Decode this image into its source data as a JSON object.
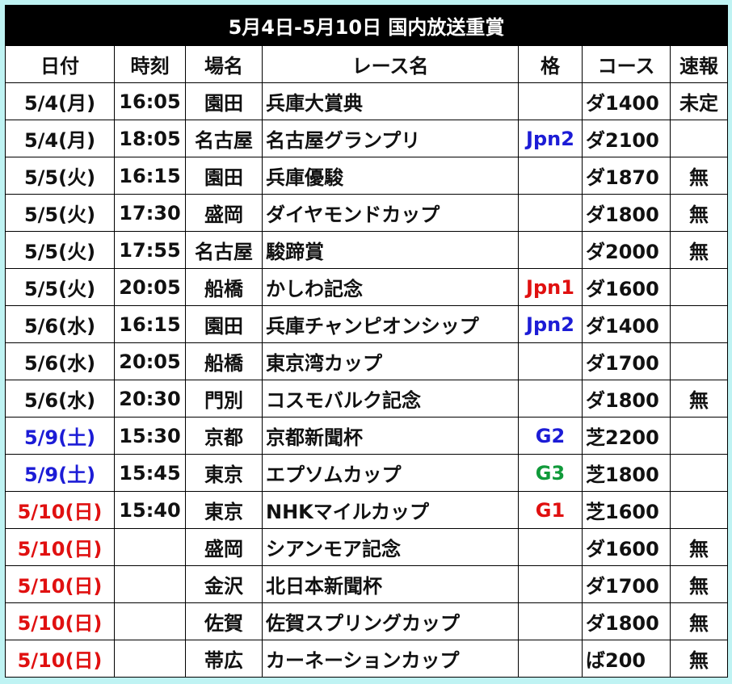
{
  "title": "5月4日-5月10日 国内放送重賞",
  "table": {
    "header": [
      "日付",
      "時刻",
      "場名",
      "レース名",
      "格",
      "コース",
      "速報"
    ],
    "rows": [
      {
        "cells": [
          "5/4(月)",
          "16:05",
          "園田",
          "兵庫大賞典",
          null,
          "ダ1400",
          "未定"
        ]
      },
      {
        "cells": [
          "5/4(月)",
          "18:05",
          "名古屋",
          "名古屋グランプリ",
          "Jpn2",
          "ダ2100",
          null
        ],
        "grade_color": "#1c1cd6"
      },
      {
        "cells": [
          "5/5(火)",
          "16:15",
          "園田",
          "兵庫優駿",
          null,
          "ダ1870",
          "無"
        ]
      },
      {
        "cells": [
          "5/5(火)",
          "17:30",
          "盛岡",
          "ダイヤモンドカップ",
          null,
          "ダ1800",
          "無"
        ]
      },
      {
        "cells": [
          "5/5(火)",
          "17:55",
          "名古屋",
          "駿蹄賞",
          null,
          "ダ2000",
          "無"
        ]
      },
      {
        "cells": [
          "5/5(火)",
          "20:05",
          "船橋",
          "かしわ記念",
          "Jpn1",
          "ダ1600",
          null
        ],
        "grade_color": "#e01010"
      },
      {
        "cells": [
          "5/6(水)",
          "16:15",
          "園田",
          "兵庫チャンピオンシップ",
          "Jpn2",
          "ダ1400",
          null
        ],
        "grade_color": "#1c1cd6"
      },
      {
        "cells": [
          "5/6(水)",
          "20:05",
          "船橋",
          "東京湾カップ",
          null,
          "ダ1700",
          null
        ]
      },
      {
        "cells": [
          "5/6(水)",
          "20:30",
          "門別",
          "コスモバルク記念",
          null,
          "ダ1800",
          "無"
        ]
      },
      {
        "cells": [
          "5/9(土)",
          "15:30",
          "京都",
          "京都新聞杯",
          "G2",
          "芝2200",
          null
        ],
        "date_color": "#1c1cd6",
        "grade_color": "#1c1cd6"
      },
      {
        "cells": [
          "5/9(土)",
          "15:45",
          "東京",
          "エプソムカップ",
          "G3",
          "芝1800",
          null
        ],
        "date_color": "#1c1cd6",
        "grade_color": "#109a3a"
      },
      {
        "cells": [
          "5/10(日)",
          "15:40",
          "東京",
          "NHKマイルカップ",
          "G1",
          "芝1600",
          null
        ],
        "date_color": "#e01010",
        "grade_color": "#e01010"
      },
      {
        "cells": [
          "5/10(日)",
          null,
          "盛岡",
          "シアンモア記念",
          null,
          "ダ1600",
          "無"
        ],
        "date_color": "#e01010"
      },
      {
        "cells": [
          "5/10(日)",
          null,
          "金沢",
          "北日本新聞杯",
          null,
          "ダ1700",
          "無"
        ],
        "date_color": "#e01010"
      },
      {
        "cells": [
          "5/10(日)",
          null,
          "佐賀",
          "佐賀スプリングカップ",
          null,
          "ダ1800",
          "無"
        ],
        "date_color": "#e01010"
      },
      {
        "cells": [
          "5/10(日)",
          null,
          "帯広",
          "カーネーションカップ",
          null,
          "ば200",
          "無"
        ],
        "date_color": "#e01010"
      }
    ]
  }
}
